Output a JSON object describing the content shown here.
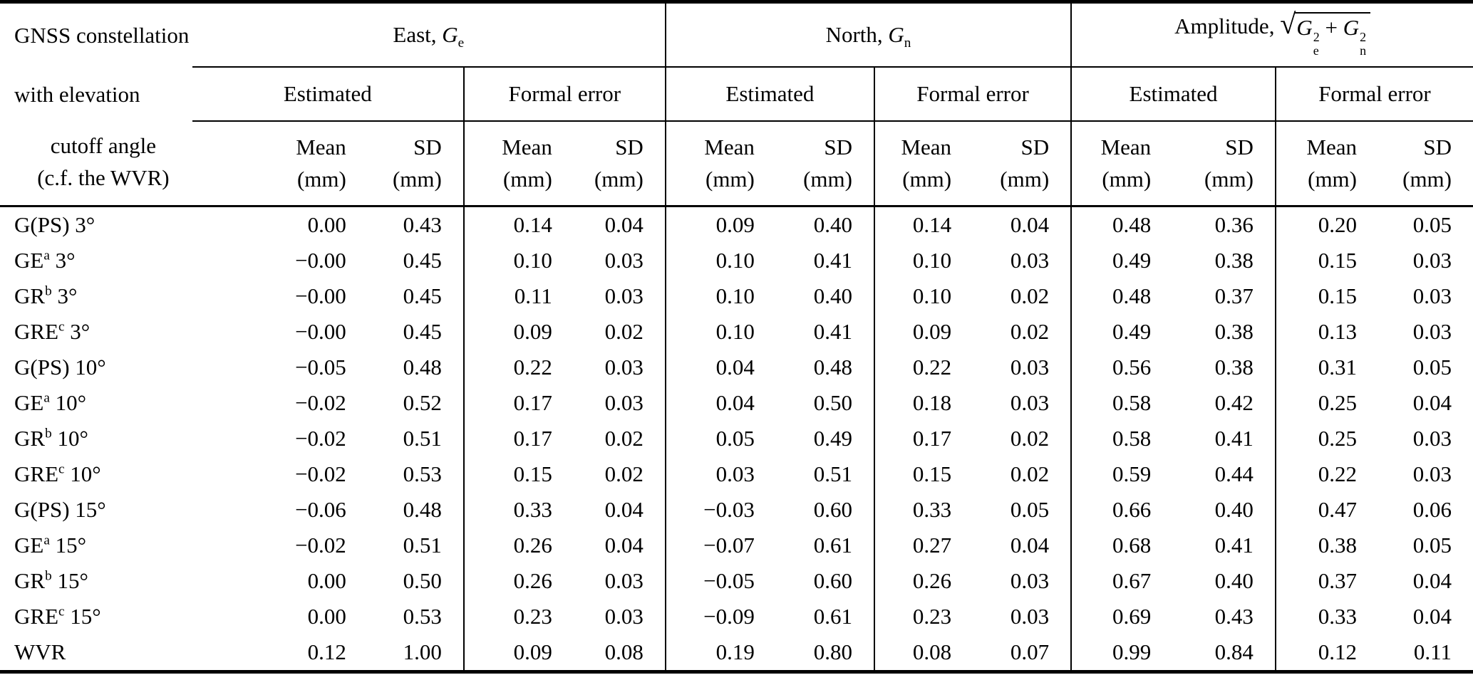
{
  "table": {
    "corner_header_lines": [
      "GNSS constellation",
      "with elevation",
      "cutoff angle",
      "(c.f. the WVR)"
    ],
    "groups": [
      {
        "name": "east",
        "label_html": "East, <i>G</i><sub>e</sub>"
      },
      {
        "name": "north",
        "label_html": "North, <i>G</i><sub>n</sub>"
      },
      {
        "name": "amplitude",
        "label_html": "Amplitude, <span class=\"sqrt\"><span class=\"sqrt-sym\">&#8730;</span><span class=\"radicand\"><i>G</i><span class=\"ss\"><span>2</span><span>e</span></span> + <i>G</i><span class=\"ss\"><span>2</span><span>n</span></span></span></span>"
      }
    ],
    "subgroup_labels": {
      "estimated": "Estimated",
      "formal_error": "Formal error"
    },
    "colhead": {
      "mean": "Mean",
      "sd": "SD",
      "unit": "(mm)"
    },
    "rows": [
      {
        "label_html": "G(PS) 3&#176;",
        "values": [
          "0.00",
          "0.43",
          "0.14",
          "0.04",
          "0.09",
          "0.40",
          "0.14",
          "0.04",
          "0.48",
          "0.36",
          "0.20",
          "0.05"
        ]
      },
      {
        "label_html": "GE<sup>a</sup> 3&#176;",
        "values": [
          "−0.00",
          "0.45",
          "0.10",
          "0.03",
          "0.10",
          "0.41",
          "0.10",
          "0.03",
          "0.49",
          "0.38",
          "0.15",
          "0.03"
        ]
      },
      {
        "label_html": "GR<sup>b</sup> 3&#176;",
        "values": [
          "−0.00",
          "0.45",
          "0.11",
          "0.03",
          "0.10",
          "0.40",
          "0.10",
          "0.02",
          "0.48",
          "0.37",
          "0.15",
          "0.03"
        ]
      },
      {
        "label_html": "GRE<sup>c</sup> 3&#176;",
        "values": [
          "−0.00",
          "0.45",
          "0.09",
          "0.02",
          "0.10",
          "0.41",
          "0.09",
          "0.02",
          "0.49",
          "0.38",
          "0.13",
          "0.03"
        ]
      },
      {
        "label_html": "G(PS) 10&#176;",
        "values": [
          "−0.05",
          "0.48",
          "0.22",
          "0.03",
          "0.04",
          "0.48",
          "0.22",
          "0.03",
          "0.56",
          "0.38",
          "0.31",
          "0.05"
        ]
      },
      {
        "label_html": "GE<sup>a</sup> 10&#176;",
        "values": [
          "−0.02",
          "0.52",
          "0.17",
          "0.03",
          "0.04",
          "0.50",
          "0.18",
          "0.03",
          "0.58",
          "0.42",
          "0.25",
          "0.04"
        ]
      },
      {
        "label_html": "GR<sup>b</sup> 10&#176;",
        "values": [
          "−0.02",
          "0.51",
          "0.17",
          "0.02",
          "0.05",
          "0.49",
          "0.17",
          "0.02",
          "0.58",
          "0.41",
          "0.25",
          "0.03"
        ]
      },
      {
        "label_html": "GRE<sup>c</sup> 10&#176;",
        "values": [
          "−0.02",
          "0.53",
          "0.15",
          "0.02",
          "0.03",
          "0.51",
          "0.15",
          "0.02",
          "0.59",
          "0.44",
          "0.22",
          "0.03"
        ]
      },
      {
        "label_html": "G(PS) 15&#176;",
        "values": [
          "−0.06",
          "0.48",
          "0.33",
          "0.04",
          "−0.03",
          "0.60",
          "0.33",
          "0.05",
          "0.66",
          "0.40",
          "0.47",
          "0.06"
        ]
      },
      {
        "label_html": "GE<sup>a</sup> 15&#176;",
        "values": [
          "−0.02",
          "0.51",
          "0.26",
          "0.04",
          "−0.07",
          "0.61",
          "0.27",
          "0.04",
          "0.68",
          "0.41",
          "0.38",
          "0.05"
        ]
      },
      {
        "label_html": "GR<sup>b</sup> 15&#176;",
        "values": [
          "0.00",
          "0.50",
          "0.26",
          "0.03",
          "−0.05",
          "0.60",
          "0.26",
          "0.03",
          "0.67",
          "0.40",
          "0.37",
          "0.04"
        ]
      },
      {
        "label_html": "GRE<sup>c</sup> 15&#176;",
        "values": [
          "0.00",
          "0.53",
          "0.23",
          "0.03",
          "−0.09",
          "0.61",
          "0.23",
          "0.03",
          "0.69",
          "0.43",
          "0.33",
          "0.04"
        ]
      },
      {
        "label_html": "WVR",
        "values": [
          "0.12",
          "1.00",
          "0.09",
          "0.08",
          "0.19",
          "0.80",
          "0.08",
          "0.07",
          "0.99",
          "0.84",
          "0.12",
          "0.11"
        ]
      }
    ]
  }
}
